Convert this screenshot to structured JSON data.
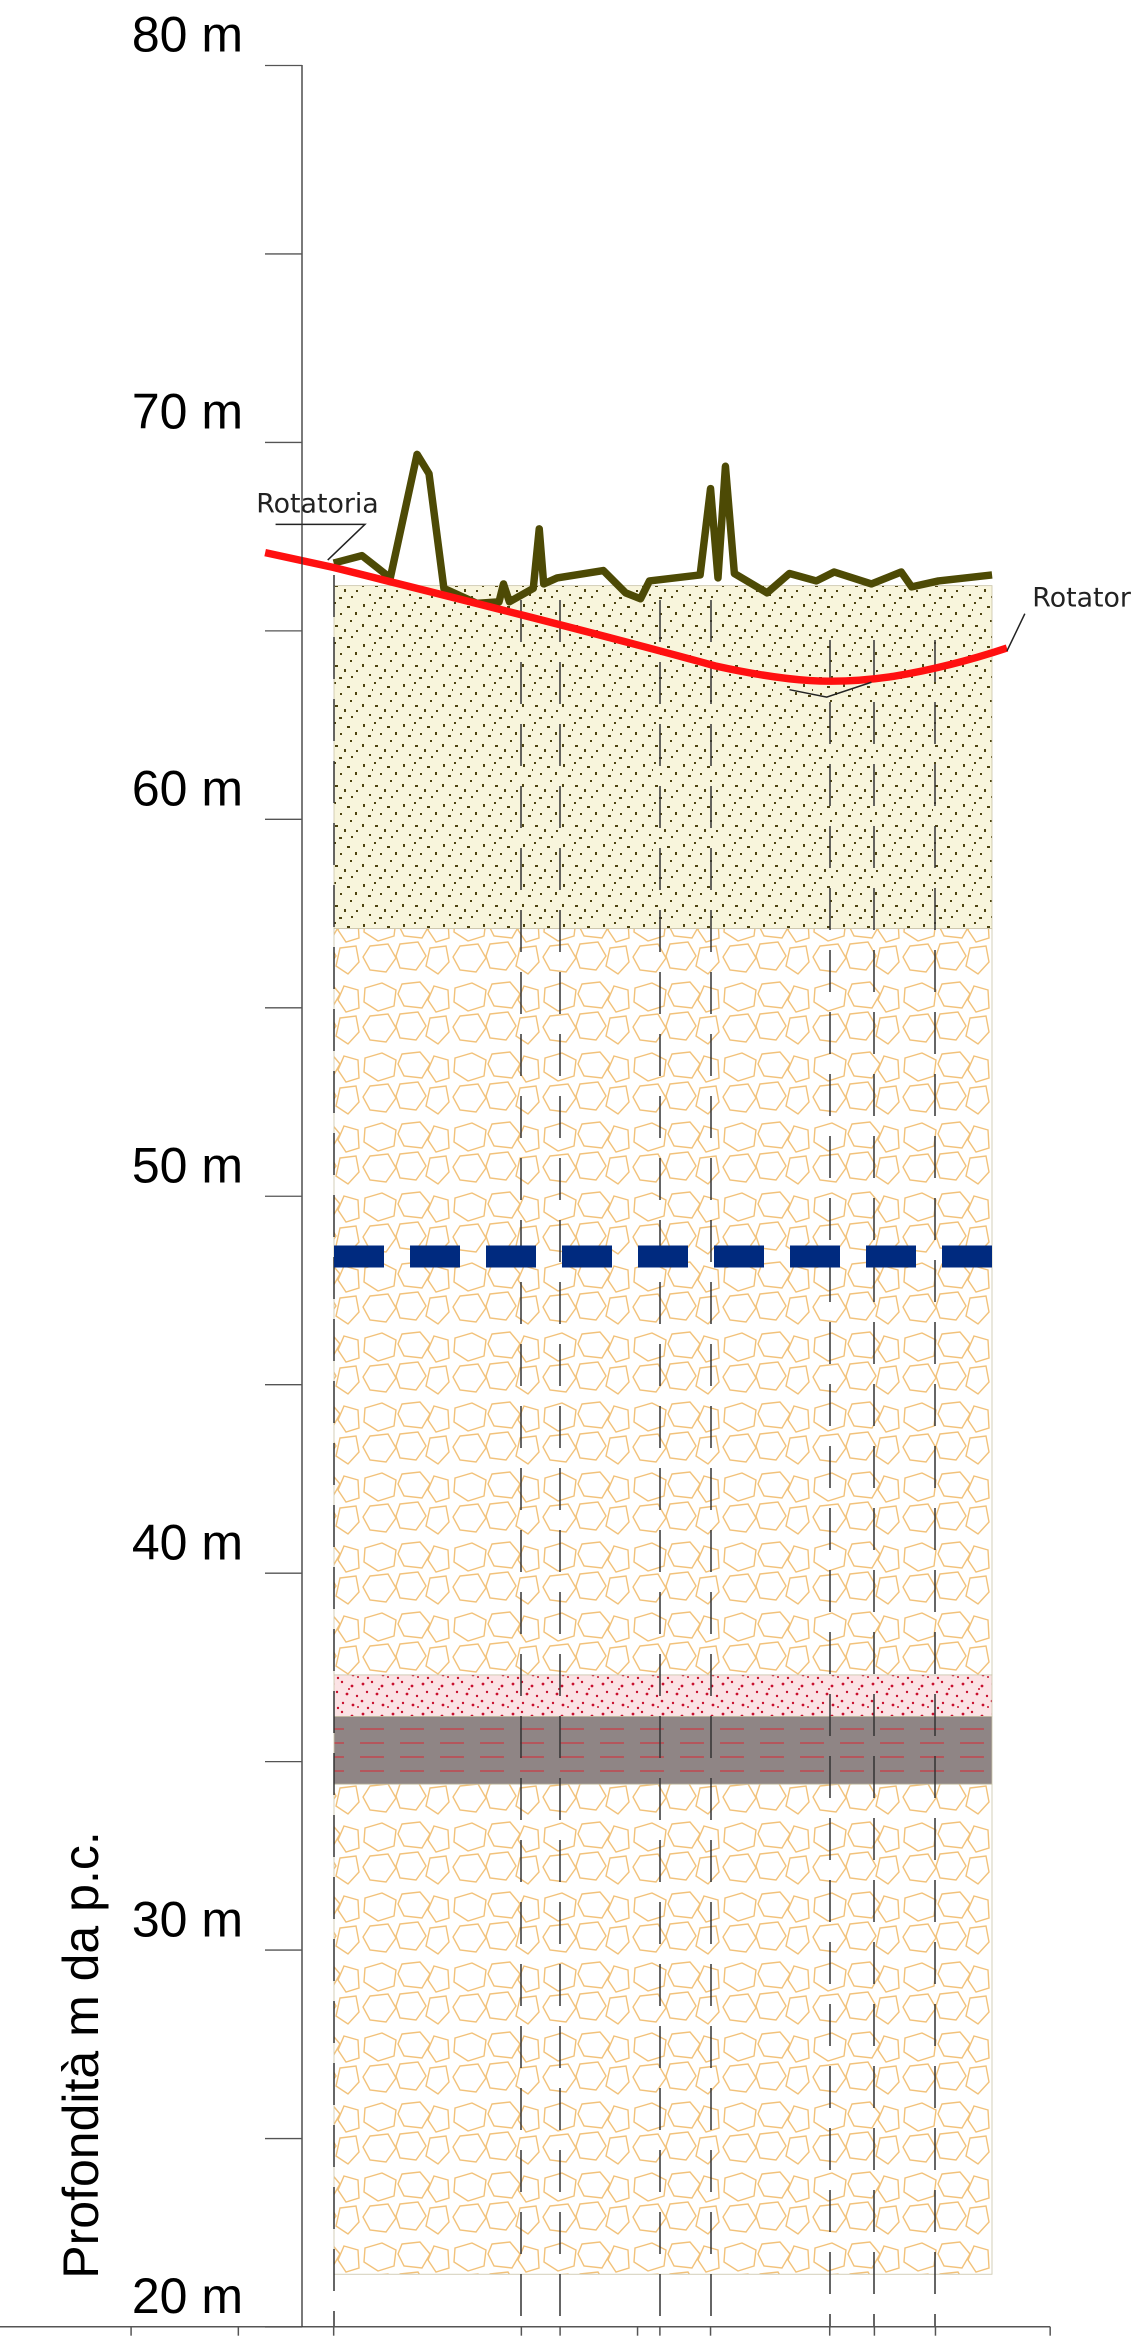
{
  "chart_data": {
    "type": "section",
    "ylabel": "Profondità m da p.c.",
    "ylim": [
      20,
      80
    ],
    "yticks": [
      {
        "value": 20,
        "label": "20 m"
      },
      {
        "value": 30,
        "label": "30 m"
      },
      {
        "value": 40,
        "label": "40 m"
      },
      {
        "value": 50,
        "label": "50 m"
      },
      {
        "value": 60,
        "label": "60 m"
      },
      {
        "value": 70,
        "label": "70 m"
      },
      {
        "value": 80,
        "label": "80 m"
      }
    ],
    "minor_yticks": [
      25,
      35,
      45,
      55,
      65,
      75
    ],
    "layers": [
      {
        "top": 66.2,
        "bottom": 57.1,
        "pattern": "sand"
      },
      {
        "top": 57.1,
        "bottom": 37.3,
        "pattern": "gravel"
      },
      {
        "top": 37.3,
        "bottom": 36.2,
        "pattern": "reddots"
      },
      {
        "top": 36.2,
        "bottom": 34.4,
        "pattern": "clay"
      },
      {
        "top": 34.4,
        "bottom": 21.4,
        "pattern": "gravel"
      }
    ],
    "water_table": 48.4,
    "water_color": "#002a7f",
    "annotations": [
      "Rotatoria",
      "Rotator"
    ]
  }
}
